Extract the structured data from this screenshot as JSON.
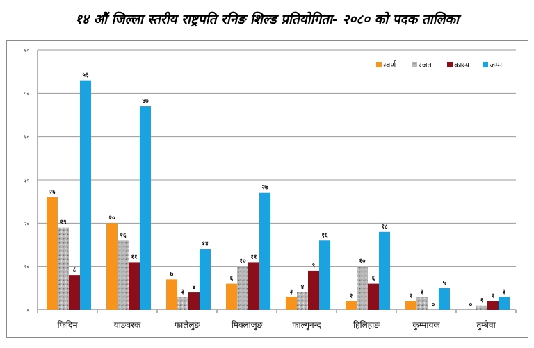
{
  "title": "१४ औं जिल्ला स्तरीय राष्ट्रपति रनिङ शिल्ड प्रतियोगिता- २०८० को  पदक तालिका",
  "chart_data": {
    "type": "bar",
    "title": "१४ औं जिल्ला स्तरीय राष्ट्रपति रनिङ शिल्ड प्रतियोगिता- २०८० को  पदक तालिका",
    "categories": [
      "फिदिम",
      "याङवरक",
      "फालेलुङ",
      "मिक्लाजुङ",
      "फाल्गुनन्द",
      "हिलिहाङ",
      "कुम्मायक",
      "तुम्बेवा"
    ],
    "series": [
      {
        "name": "स्वर्ण",
        "values": [
          26,
          20,
          7,
          6,
          3,
          2,
          2,
          0
        ],
        "labels": [
          "२६",
          "२०",
          "७",
          "६",
          "३",
          "२",
          "२",
          "०"
        ]
      },
      {
        "name": "रजत",
        "values": [
          19,
          16,
          3,
          10,
          4,
          10,
          3,
          1
        ],
        "labels": [
          "१९",
          "१६",
          "३",
          "१०",
          "४",
          "१०",
          "३",
          "१"
        ]
      },
      {
        "name": "कास्य",
        "values": [
          8,
          11,
          4,
          11,
          9,
          6,
          0,
          2
        ],
        "labels": [
          "८",
          "११",
          "४",
          "११",
          "९",
          "६",
          "०",
          "२"
        ]
      },
      {
        "name": "जम्मा",
        "values": [
          53,
          47,
          14,
          27,
          16,
          18,
          5,
          3
        ],
        "labels": [
          "५३",
          "४७",
          "१४",
          "२७",
          "१६",
          "१८",
          "५",
          "३"
        ]
      }
    ],
    "yticks": [
      0,
      10,
      20,
      30,
      40,
      50,
      60
    ],
    "ytick_labels": [
      "०",
      "१०",
      "२०",
      "३०",
      "४०",
      "५०",
      "६०"
    ],
    "ylim": [
      0,
      60
    ],
    "grid": true,
    "legend": "top-right",
    "colors": {
      "स्वर्ण": "#f7941d",
      "रजत": "#a9a9a9",
      "कास्य": "#8b0e1a",
      "जम्मा": "#1aa3e0"
    },
    "xlabel": "",
    "ylabel": ""
  }
}
